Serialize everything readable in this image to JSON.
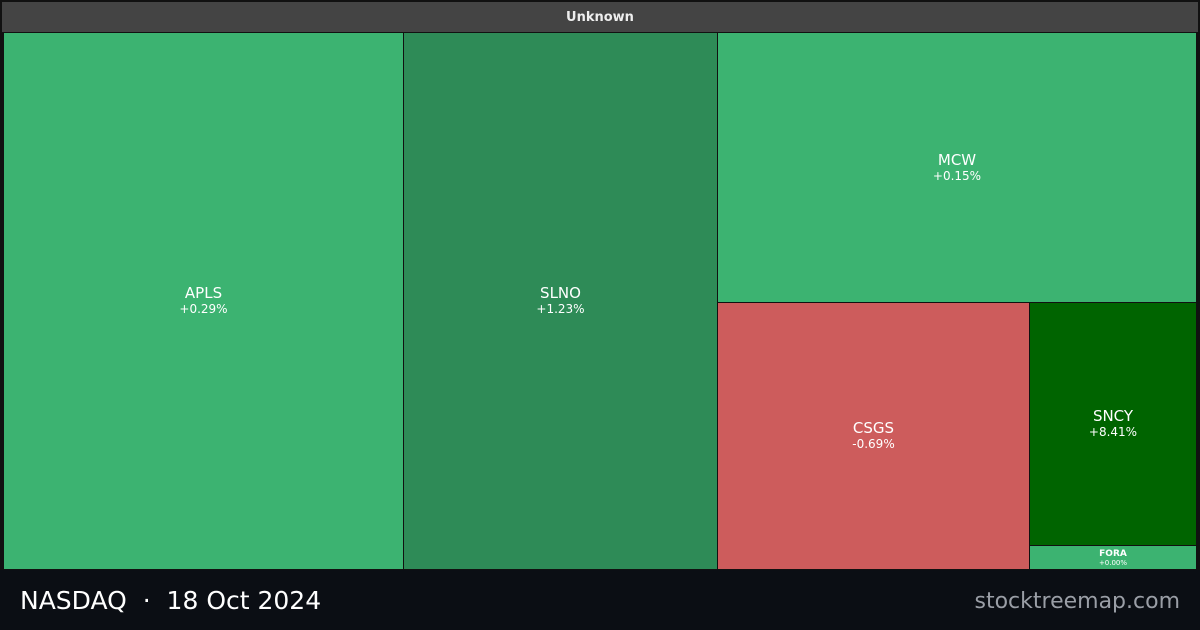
{
  "header": {
    "title": "Unknown"
  },
  "tiles": [
    {
      "label": "APLS",
      "change": "+0.29%",
      "color": "#3cb371"
    },
    {
      "label": "SLNO",
      "change": "+1.23%",
      "color": "#2e8b57"
    },
    {
      "label": "MCW",
      "change": "+0.15%",
      "color": "#3cb371"
    },
    {
      "label": "CSGS",
      "change": "-0.69%",
      "color": "#cd5c5c"
    },
    {
      "label": "SNCY",
      "change": "+8.41%",
      "color": "#006400"
    },
    {
      "label": "FORA",
      "change": "+0.00%",
      "color": "#3cb371"
    }
  ],
  "footer": {
    "title": "NASDAQ  ·  18 Oct 2024",
    "site": "stocktreemap.com"
  }
}
